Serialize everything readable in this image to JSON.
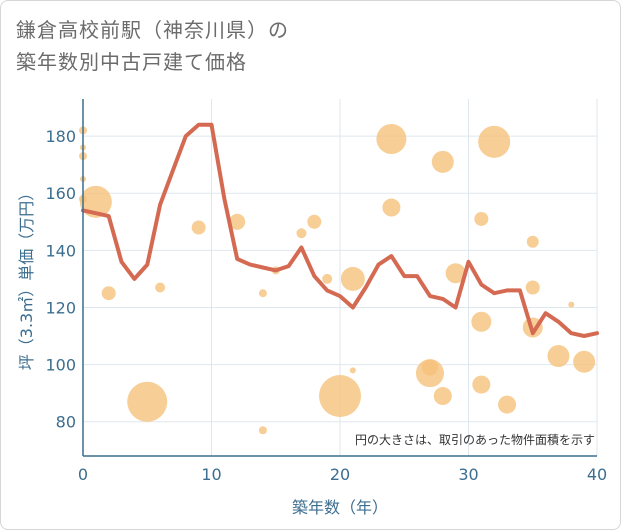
{
  "title_line1": "鎌倉高校前駅（神奈川県）の",
  "title_line2": "築年数別中古戸建て価格",
  "chart_data": {
    "type": "scatter+line",
    "xlabel": "築年数（年）",
    "ylabel": "坪（3.3㎡）単価（万円）",
    "note": "円の大きさは、取引のあった物件面積を示す",
    "xlim": [
      0,
      40
    ],
    "ylim": [
      68,
      193
    ],
    "xticks": [
      0,
      10,
      20,
      30,
      40
    ],
    "yticks": [
      80,
      100,
      120,
      140,
      160,
      180
    ],
    "colors": {
      "line": "#d56a52",
      "bubble": "#f5c27a",
      "grid": "#dfe7ee",
      "axis": "#3c6e8f"
    },
    "line": {
      "x": [
        0,
        1,
        2,
        3,
        4,
        5,
        6,
        7,
        8,
        9,
        10,
        11,
        12,
        13,
        14,
        15,
        16,
        17,
        18,
        19,
        20,
        21,
        22,
        23,
        24,
        25,
        26,
        27,
        28,
        29,
        30,
        31,
        32,
        33,
        34,
        35,
        36,
        37,
        38,
        39,
        40
      ],
      "y": [
        154,
        153,
        152,
        136,
        130,
        135,
        156,
        168,
        180,
        184,
        184,
        158,
        137,
        135,
        134,
        133,
        134.5,
        141,
        131,
        126,
        124,
        120,
        127,
        135,
        138,
        131,
        131,
        124,
        123,
        120,
        136,
        128,
        125,
        126,
        126,
        111,
        118,
        115,
        111,
        110,
        111
      ]
    },
    "bubbles": [
      {
        "x": 0,
        "y": 182,
        "size": 4
      },
      {
        "x": 0,
        "y": 176,
        "size": 3
      },
      {
        "x": 0,
        "y": 173,
        "size": 4
      },
      {
        "x": 0,
        "y": 165,
        "size": 3
      },
      {
        "x": 0,
        "y": 158,
        "size": 4
      },
      {
        "x": 1,
        "y": 157,
        "size": 16
      },
      {
        "x": 2,
        "y": 125,
        "size": 7
      },
      {
        "x": 5,
        "y": 87,
        "size": 20
      },
      {
        "x": 6,
        "y": 127,
        "size": 5
      },
      {
        "x": 9,
        "y": 148,
        "size": 7
      },
      {
        "x": 12,
        "y": 150,
        "size": 8
      },
      {
        "x": 14,
        "y": 125,
        "size": 4
      },
      {
        "x": 14,
        "y": 77,
        "size": 4
      },
      {
        "x": 15,
        "y": 133,
        "size": 4
      },
      {
        "x": 17,
        "y": 146,
        "size": 5
      },
      {
        "x": 18,
        "y": 150,
        "size": 7
      },
      {
        "x": 19,
        "y": 130,
        "size": 5
      },
      {
        "x": 20,
        "y": 89,
        "size": 21
      },
      {
        "x": 21,
        "y": 130,
        "size": 12
      },
      {
        "x": 21,
        "y": 98,
        "size": 3
      },
      {
        "x": 24,
        "y": 179,
        "size": 15
      },
      {
        "x": 24,
        "y": 155,
        "size": 9
      },
      {
        "x": 27,
        "y": 97,
        "size": 14
      },
      {
        "x": 27,
        "y": 99,
        "size": 8
      },
      {
        "x": 28,
        "y": 171,
        "size": 11
      },
      {
        "x": 28,
        "y": 89,
        "size": 9
      },
      {
        "x": 29,
        "y": 132,
        "size": 10
      },
      {
        "x": 31,
        "y": 151,
        "size": 7
      },
      {
        "x": 31,
        "y": 115,
        "size": 10
      },
      {
        "x": 31,
        "y": 93,
        "size": 9
      },
      {
        "x": 32,
        "y": 178,
        "size": 16
      },
      {
        "x": 33,
        "y": 86,
        "size": 9
      },
      {
        "x": 35,
        "y": 143,
        "size": 6
      },
      {
        "x": 35,
        "y": 127,
        "size": 7
      },
      {
        "x": 35,
        "y": 113,
        "size": 10
      },
      {
        "x": 37,
        "y": 103,
        "size": 11
      },
      {
        "x": 38,
        "y": 121,
        "size": 3
      },
      {
        "x": 39,
        "y": 101,
        "size": 11
      }
    ]
  }
}
